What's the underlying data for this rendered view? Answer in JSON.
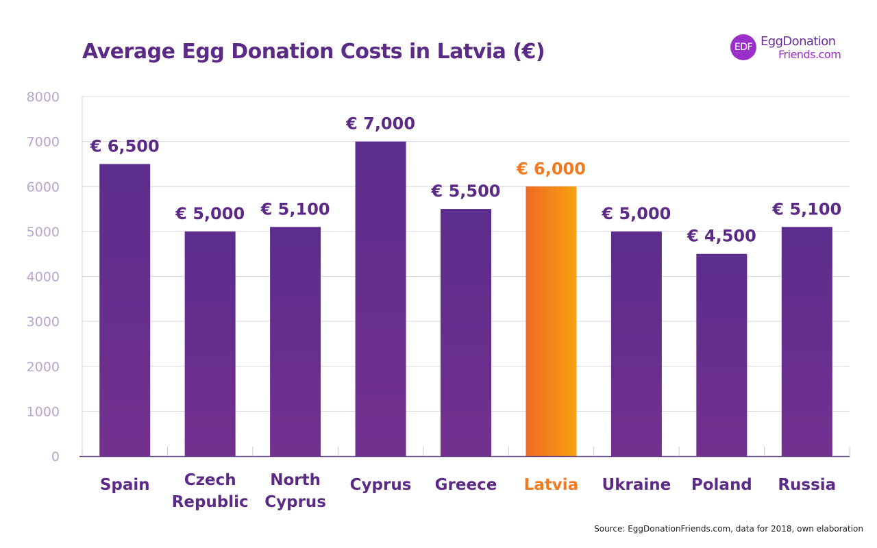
{
  "title": "Average Egg Donation Costs in Latvia (€)",
  "logo": {
    "badge": "EDF",
    "line1": "EggDonation",
    "line2": "Friends.com"
  },
  "source": "Source: EggDonationFriends.com, data for 2018, own elaboration",
  "colors": {
    "bar_top": "#5b2d8c",
    "bar_bottom": "#73308f",
    "highlight_top": "#f06a25",
    "highlight_bottom": "#f6a10f",
    "label_purple": "#5b2a86",
    "label_orange": "#f07a20",
    "tick": "#b8a6cc",
    "grid": "#dcd5e6"
  },
  "chart_data": {
    "type": "bar",
    "title": "Average Egg Donation Costs in Latvia (€)",
    "categories": [
      [
        "Spain"
      ],
      [
        "Czech",
        "Republic"
      ],
      [
        "North",
        "Cyprus"
      ],
      [
        "Cyprus"
      ],
      [
        "Greece"
      ],
      [
        "Latvia"
      ],
      [
        "Ukraine"
      ],
      [
        "Poland"
      ],
      [
        "Russia"
      ]
    ],
    "values": [
      6500,
      5000,
      5100,
      7000,
      5500,
      6000,
      5000,
      4500,
      5100
    ],
    "data_labels": [
      "€ 6,500",
      "€ 5,000",
      "€ 5,100",
      "€ 7,000",
      "€ 5,500",
      "€ 6,000",
      "€ 5,000",
      "€ 4,500",
      "€ 5,100"
    ],
    "highlight_index": 5,
    "ylim": [
      0,
      8000
    ],
    "yticks": [
      0,
      1000,
      2000,
      3000,
      4000,
      5000,
      6000,
      7000,
      8000
    ],
    "grid": true,
    "legend": "none"
  }
}
